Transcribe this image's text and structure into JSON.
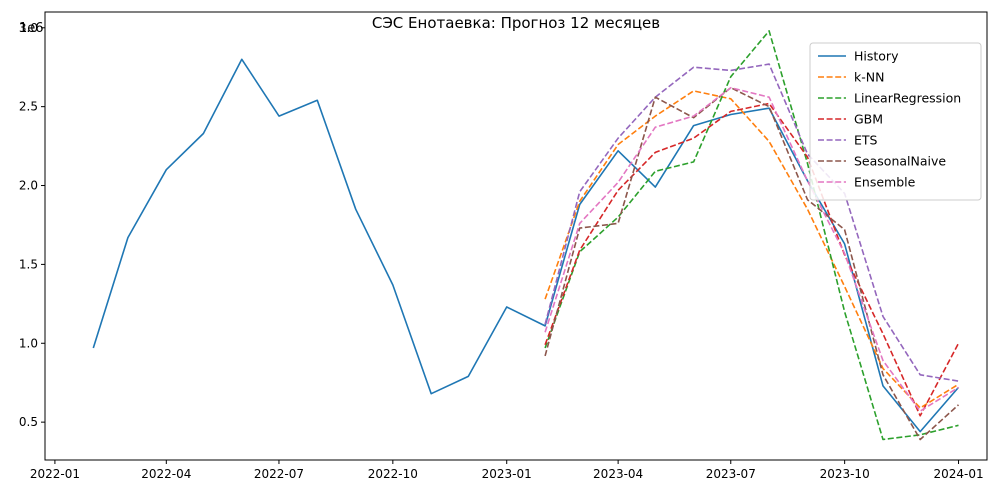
{
  "chart_data": {
    "type": "line",
    "title": "СЭС Енотаевка: Прогноз 12 месяцев",
    "xlabel": "",
    "ylabel": "",
    "y_offset_text": "1e6",
    "xlim": [
      "2021-12-24",
      "2024-01-24"
    ],
    "ylim": [
      0.26,
      3.1
    ],
    "grid": false,
    "legend_position": "upper right",
    "xticks": [
      {
        "date": "2022-01-01",
        "label": "2022-01"
      },
      {
        "date": "2022-04-01",
        "label": "2022-04"
      },
      {
        "date": "2022-07-01",
        "label": "2022-07"
      },
      {
        "date": "2022-10-01",
        "label": "2022-10"
      },
      {
        "date": "2023-01-01",
        "label": "2023-01"
      },
      {
        "date": "2023-04-01",
        "label": "2023-04"
      },
      {
        "date": "2023-07-01",
        "label": "2023-07"
      },
      {
        "date": "2023-10-01",
        "label": "2023-10"
      },
      {
        "date": "2024-01-01",
        "label": "2024-01"
      }
    ],
    "yticks": [
      {
        "value": 0.5,
        "label": "0.5"
      },
      {
        "value": 1.0,
        "label": "1.0"
      },
      {
        "value": 1.5,
        "label": "1.5"
      },
      {
        "value": 2.0,
        "label": "2.0"
      },
      {
        "value": 2.5,
        "label": "2.5"
      },
      {
        "value": 3.0,
        "label": "3.0"
      }
    ],
    "series": [
      {
        "name": "History",
        "color": "#1f77b4",
        "style": "solid",
        "x": [
          "2022-02-01",
          "2022-03-01",
          "2022-04-01",
          "2022-05-01",
          "2022-06-01",
          "2022-07-01",
          "2022-08-01",
          "2022-09-01",
          "2022-10-01",
          "2022-11-01",
          "2022-12-01",
          "2023-01-01",
          "2023-02-01",
          "2023-03-01",
          "2023-04-01",
          "2023-05-01",
          "2023-06-01",
          "2023-07-01",
          "2023-08-01",
          "2023-09-01",
          "2023-10-01",
          "2023-11-01",
          "2023-12-01",
          "2024-01-01"
        ],
        "y": [
          0.97,
          1.67,
          2.1,
          2.33,
          2.8,
          2.44,
          2.54,
          1.85,
          1.37,
          0.68,
          0.79,
          1.23,
          1.11,
          1.88,
          2.22,
          1.99,
          2.38,
          2.45,
          2.49,
          2.03,
          1.63,
          0.73,
          0.44,
          0.72
        ]
      },
      {
        "name": "k-NN",
        "color": "#ff7f0e",
        "style": "dashed",
        "x": [
          "2023-02-01",
          "2023-03-01",
          "2023-04-01",
          "2023-05-01",
          "2023-06-01",
          "2023-07-01",
          "2023-08-01",
          "2023-09-01",
          "2023-10-01",
          "2023-11-01",
          "2023-12-01",
          "2024-01-01"
        ],
        "y": [
          1.28,
          1.9,
          2.26,
          2.44,
          2.6,
          2.55,
          2.28,
          1.85,
          1.36,
          0.84,
          0.59,
          0.74
        ]
      },
      {
        "name": "LinearRegression",
        "color": "#2ca02c",
        "style": "dashed",
        "x": [
          "2023-02-01",
          "2023-03-01",
          "2023-04-01",
          "2023-05-01",
          "2023-06-01",
          "2023-07-01",
          "2023-08-01",
          "2023-09-01",
          "2023-10-01",
          "2023-11-01",
          "2023-12-01",
          "2024-01-01"
        ],
        "y": [
          0.97,
          1.58,
          1.8,
          2.09,
          2.15,
          2.69,
          2.98,
          2.14,
          1.2,
          0.39,
          0.42,
          0.48
        ]
      },
      {
        "name": "GBM",
        "color": "#d62728",
        "style": "dashed",
        "x": [
          "2023-02-01",
          "2023-03-01",
          "2023-04-01",
          "2023-05-01",
          "2023-06-01",
          "2023-07-01",
          "2023-08-01",
          "2023-09-01",
          "2023-10-01",
          "2023-11-01",
          "2023-12-01",
          "2024-01-01"
        ],
        "y": [
          0.99,
          1.59,
          1.97,
          2.21,
          2.3,
          2.47,
          2.52,
          2.18,
          1.56,
          1.06,
          0.54,
          1.0
        ]
      },
      {
        "name": "ETS",
        "color": "#9467bd",
        "style": "dashed",
        "x": [
          "2023-02-01",
          "2023-03-01",
          "2023-04-01",
          "2023-05-01",
          "2023-06-01",
          "2023-07-01",
          "2023-08-01",
          "2023-09-01",
          "2023-10-01",
          "2023-11-01",
          "2023-12-01",
          "2024-01-01"
        ],
        "y": [
          1.12,
          1.96,
          2.3,
          2.56,
          2.75,
          2.73,
          2.77,
          2.2,
          1.95,
          1.17,
          0.8,
          0.76
        ]
      },
      {
        "name": "SeasonalNaive",
        "color": "#8c564b",
        "style": "dashed",
        "x": [
          "2023-02-01",
          "2023-03-01",
          "2023-04-01",
          "2023-05-01",
          "2023-06-01",
          "2023-07-01",
          "2023-08-01",
          "2023-09-01",
          "2023-10-01",
          "2023-11-01",
          "2023-12-01",
          "2024-01-01"
        ],
        "y": [
          0.92,
          1.73,
          1.76,
          2.56,
          2.43,
          2.62,
          2.5,
          1.91,
          1.72,
          0.8,
          0.39,
          0.61
        ]
      },
      {
        "name": "Ensemble",
        "color": "#e377c2",
        "style": "dashed",
        "x": [
          "2023-02-01",
          "2023-03-01",
          "2023-04-01",
          "2023-05-01",
          "2023-06-01",
          "2023-07-01",
          "2023-08-01",
          "2023-09-01",
          "2023-10-01",
          "2023-11-01",
          "2023-12-01",
          "2024-01-01"
        ],
        "y": [
          1.07,
          1.76,
          2.02,
          2.37,
          2.44,
          2.62,
          2.56,
          2.03,
          1.57,
          0.89,
          0.57,
          0.72
        ]
      }
    ]
  }
}
